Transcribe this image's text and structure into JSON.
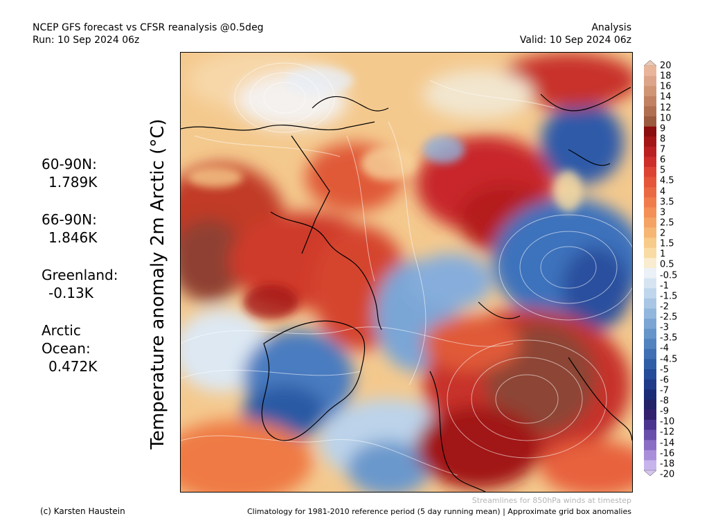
{
  "header": {
    "title": "NCEP GFS forecast vs CFSR reanalysis @0.5deg",
    "run": "Run: 10 Sep 2024 06z",
    "mode": "Analysis",
    "valid": "Valid: 10 Sep 2024 06z"
  },
  "stats": [
    {
      "label": "60-90N:",
      "value": "1.789K"
    },
    {
      "label": "66-90N:",
      "value": "1.846K"
    },
    {
      "label": "Greenland:",
      "value": "-0.13K"
    },
    {
      "label": "Arctic Ocean:",
      "value": "0.472K"
    }
  ],
  "axis_label": "Temperature anomaly 2m Arctic (°C)",
  "colorbar": {
    "labels": [
      "20",
      "18",
      "16",
      "14",
      "12",
      "10",
      "9",
      "8",
      "7",
      "6",
      "5",
      "4.5",
      "4",
      "3.5",
      "3",
      "2.5",
      "2",
      "1.5",
      "1",
      "0.5",
      "-0.5",
      "-1",
      "-1.5",
      "-2",
      "-2.5",
      "-3",
      "-3.5",
      "-4",
      "-4.5",
      "-5",
      "-6",
      "-7",
      "-8",
      "-9",
      "-10",
      "-12",
      "-14",
      "-16",
      "-18",
      "-20"
    ],
    "colors": [
      "#e8b59b",
      "#dca589",
      "#cf9575",
      "#c08262",
      "#b06f50",
      "#9c5a3e",
      "#8b0d0d",
      "#a41616",
      "#ba2020",
      "#cd2e2a",
      "#dd4332",
      "#e4553a",
      "#ea6842",
      "#f07b4b",
      "#f38f57",
      "#f5a365",
      "#f6b775",
      "#f7cb8a",
      "#f8dca3",
      "#faecd0",
      "#ecf1f7",
      "#d6e4f2",
      "#c0d6ec",
      "#a9c7e4",
      "#92b7dc",
      "#7ba6d3",
      "#6595c9",
      "#5183bf",
      "#3f70b3",
      "#305ea6",
      "#244c98",
      "#1d3b88",
      "#1b2c76",
      "#232269",
      "#33216f",
      "#4b3390",
      "#6a4eab",
      "#8a6dc4",
      "#a98fda",
      "#c7b4ec"
    ]
  },
  "footer": {
    "credit": "(c) Karsten Haustein",
    "streamlines": "Streamlines for 850hPa winds at timestep",
    "climatology": "Climatology for 1981-2010 reference period (5 day running mean) | Approximate grid box anomalies"
  }
}
